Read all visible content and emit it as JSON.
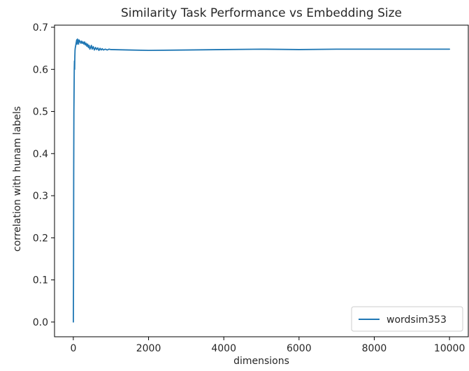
{
  "chart_data": {
    "type": "line",
    "title": "Similarity Task Performance vs Embedding Size",
    "xlabel": "dimensions",
    "ylabel": "correlation with hunam labels",
    "xlim": [
      -500,
      10500
    ],
    "ylim": [
      -0.035,
      0.705
    ],
    "xticks": [
      0,
      2000,
      4000,
      6000,
      8000,
      10000
    ],
    "xtick_labels": [
      "0",
      "2000",
      "4000",
      "6000",
      "8000",
      "10000"
    ],
    "yticks": [
      0.0,
      0.1,
      0.2,
      0.3,
      0.4,
      0.5,
      0.6,
      0.7
    ],
    "ytick_labels": [
      "0.0",
      "0.1",
      "0.2",
      "0.3",
      "0.4",
      "0.5",
      "0.6",
      "0.7"
    ],
    "grid": false,
    "legend_position": "lower-right",
    "series": [
      {
        "name": "wordsim353",
        "color": "#1f77b4",
        "x": [
          1,
          5,
          10,
          15,
          20,
          25,
          30,
          35,
          40,
          45,
          50,
          60,
          70,
          80,
          90,
          100,
          110,
          120,
          130,
          140,
          150,
          160,
          170,
          180,
          190,
          200,
          220,
          240,
          260,
          280,
          300,
          320,
          340,
          360,
          380,
          400,
          420,
          440,
          460,
          480,
          500,
          530,
          560,
          590,
          620,
          650,
          680,
          710,
          740,
          770,
          800,
          850,
          900,
          950,
          1000,
          1500,
          2000,
          3000,
          4000,
          5000,
          6000,
          7000,
          8000,
          9000,
          10000
        ],
        "y": [
          0.0,
          0.1,
          0.35,
          0.5,
          0.55,
          0.6,
          0.62,
          0.6,
          0.63,
          0.645,
          0.65,
          0.655,
          0.66,
          0.665,
          0.67,
          0.66,
          0.672,
          0.665,
          0.668,
          0.66,
          0.67,
          0.665,
          0.668,
          0.666,
          0.665,
          0.662,
          0.667,
          0.662,
          0.665,
          0.66,
          0.665,
          0.658,
          0.662,
          0.655,
          0.66,
          0.652,
          0.657,
          0.648,
          0.652,
          0.657,
          0.648,
          0.654,
          0.646,
          0.652,
          0.647,
          0.651,
          0.645,
          0.65,
          0.646,
          0.649,
          0.646,
          0.648,
          0.646,
          0.648,
          0.647,
          0.646,
          0.645,
          0.646,
          0.647,
          0.648,
          0.647,
          0.648,
          0.648,
          0.648,
          0.648
        ]
      }
    ]
  }
}
